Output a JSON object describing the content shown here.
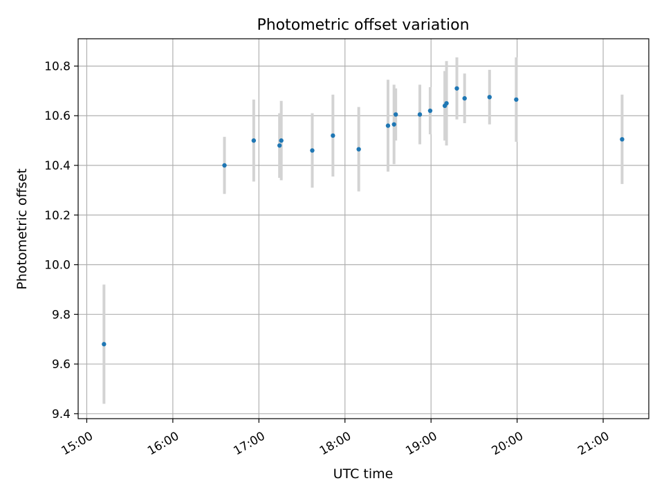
{
  "chart_data": {
    "type": "scatter",
    "title": "Photometric offset variation",
    "xlabel": "UTC time",
    "ylabel": "Photometric offset",
    "x_tick_labels": [
      "15:00",
      "16:00",
      "17:00",
      "18:00",
      "19:00",
      "20:00",
      "21:00"
    ],
    "x_ticks_hours": [
      15,
      16,
      17,
      18,
      19,
      20,
      21
    ],
    "y_tick_labels": [
      "9.4",
      "9.6",
      "9.8",
      "10.0",
      "10.2",
      "10.4",
      "10.6",
      "10.8"
    ],
    "y_ticks": [
      9.4,
      9.6,
      9.8,
      10.0,
      10.2,
      10.4,
      10.6,
      10.8
    ],
    "xlim_hours": [
      14.9,
      21.53
    ],
    "ylim": [
      9.38,
      10.91
    ],
    "grid": true,
    "series": [
      {
        "marker_color": "#1f77b4",
        "errorbar_color": "#d3d3d3",
        "points": [
          {
            "time": "15:12",
            "hour": 15.2,
            "y": 9.68,
            "err": 0.24
          },
          {
            "time": "16:36",
            "hour": 16.6,
            "y": 10.4,
            "err": 0.115
          },
          {
            "time": "16:56",
            "hour": 16.94,
            "y": 10.5,
            "err": 0.165
          },
          {
            "time": "17:14",
            "hour": 17.24,
            "y": 10.48,
            "err": 0.13
          },
          {
            "time": "17:16",
            "hour": 17.26,
            "y": 10.5,
            "err": 0.16
          },
          {
            "time": "17:37",
            "hour": 17.62,
            "y": 10.46,
            "err": 0.15
          },
          {
            "time": "17:51",
            "hour": 17.86,
            "y": 10.52,
            "err": 0.165
          },
          {
            "time": "18:09",
            "hour": 18.16,
            "y": 10.465,
            "err": 0.17
          },
          {
            "time": "18:30",
            "hour": 18.5,
            "y": 10.56,
            "err": 0.185
          },
          {
            "time": "18:34",
            "hour": 18.57,
            "y": 10.565,
            "err": 0.16
          },
          {
            "time": "18:35",
            "hour": 18.59,
            "y": 10.605,
            "err": 0.105
          },
          {
            "time": "18:52",
            "hour": 18.87,
            "y": 10.605,
            "err": 0.12
          },
          {
            "time": "18:59",
            "hour": 18.99,
            "y": 10.62,
            "err": 0.095
          },
          {
            "time": "19:10",
            "hour": 19.16,
            "y": 10.64,
            "err": 0.14
          },
          {
            "time": "19:11",
            "hour": 19.18,
            "y": 10.65,
            "err": 0.17
          },
          {
            "time": "19:18",
            "hour": 19.3,
            "y": 10.71,
            "err": 0.125
          },
          {
            "time": "19:23",
            "hour": 19.39,
            "y": 10.67,
            "err": 0.1
          },
          {
            "time": "19:41",
            "hour": 19.68,
            "y": 10.675,
            "err": 0.11
          },
          {
            "time": "19:59",
            "hour": 19.99,
            "y": 10.665,
            "err": 0.17
          },
          {
            "time": "21:13",
            "hour": 21.22,
            "y": 10.505,
            "err": 0.18
          }
        ]
      }
    ]
  }
}
